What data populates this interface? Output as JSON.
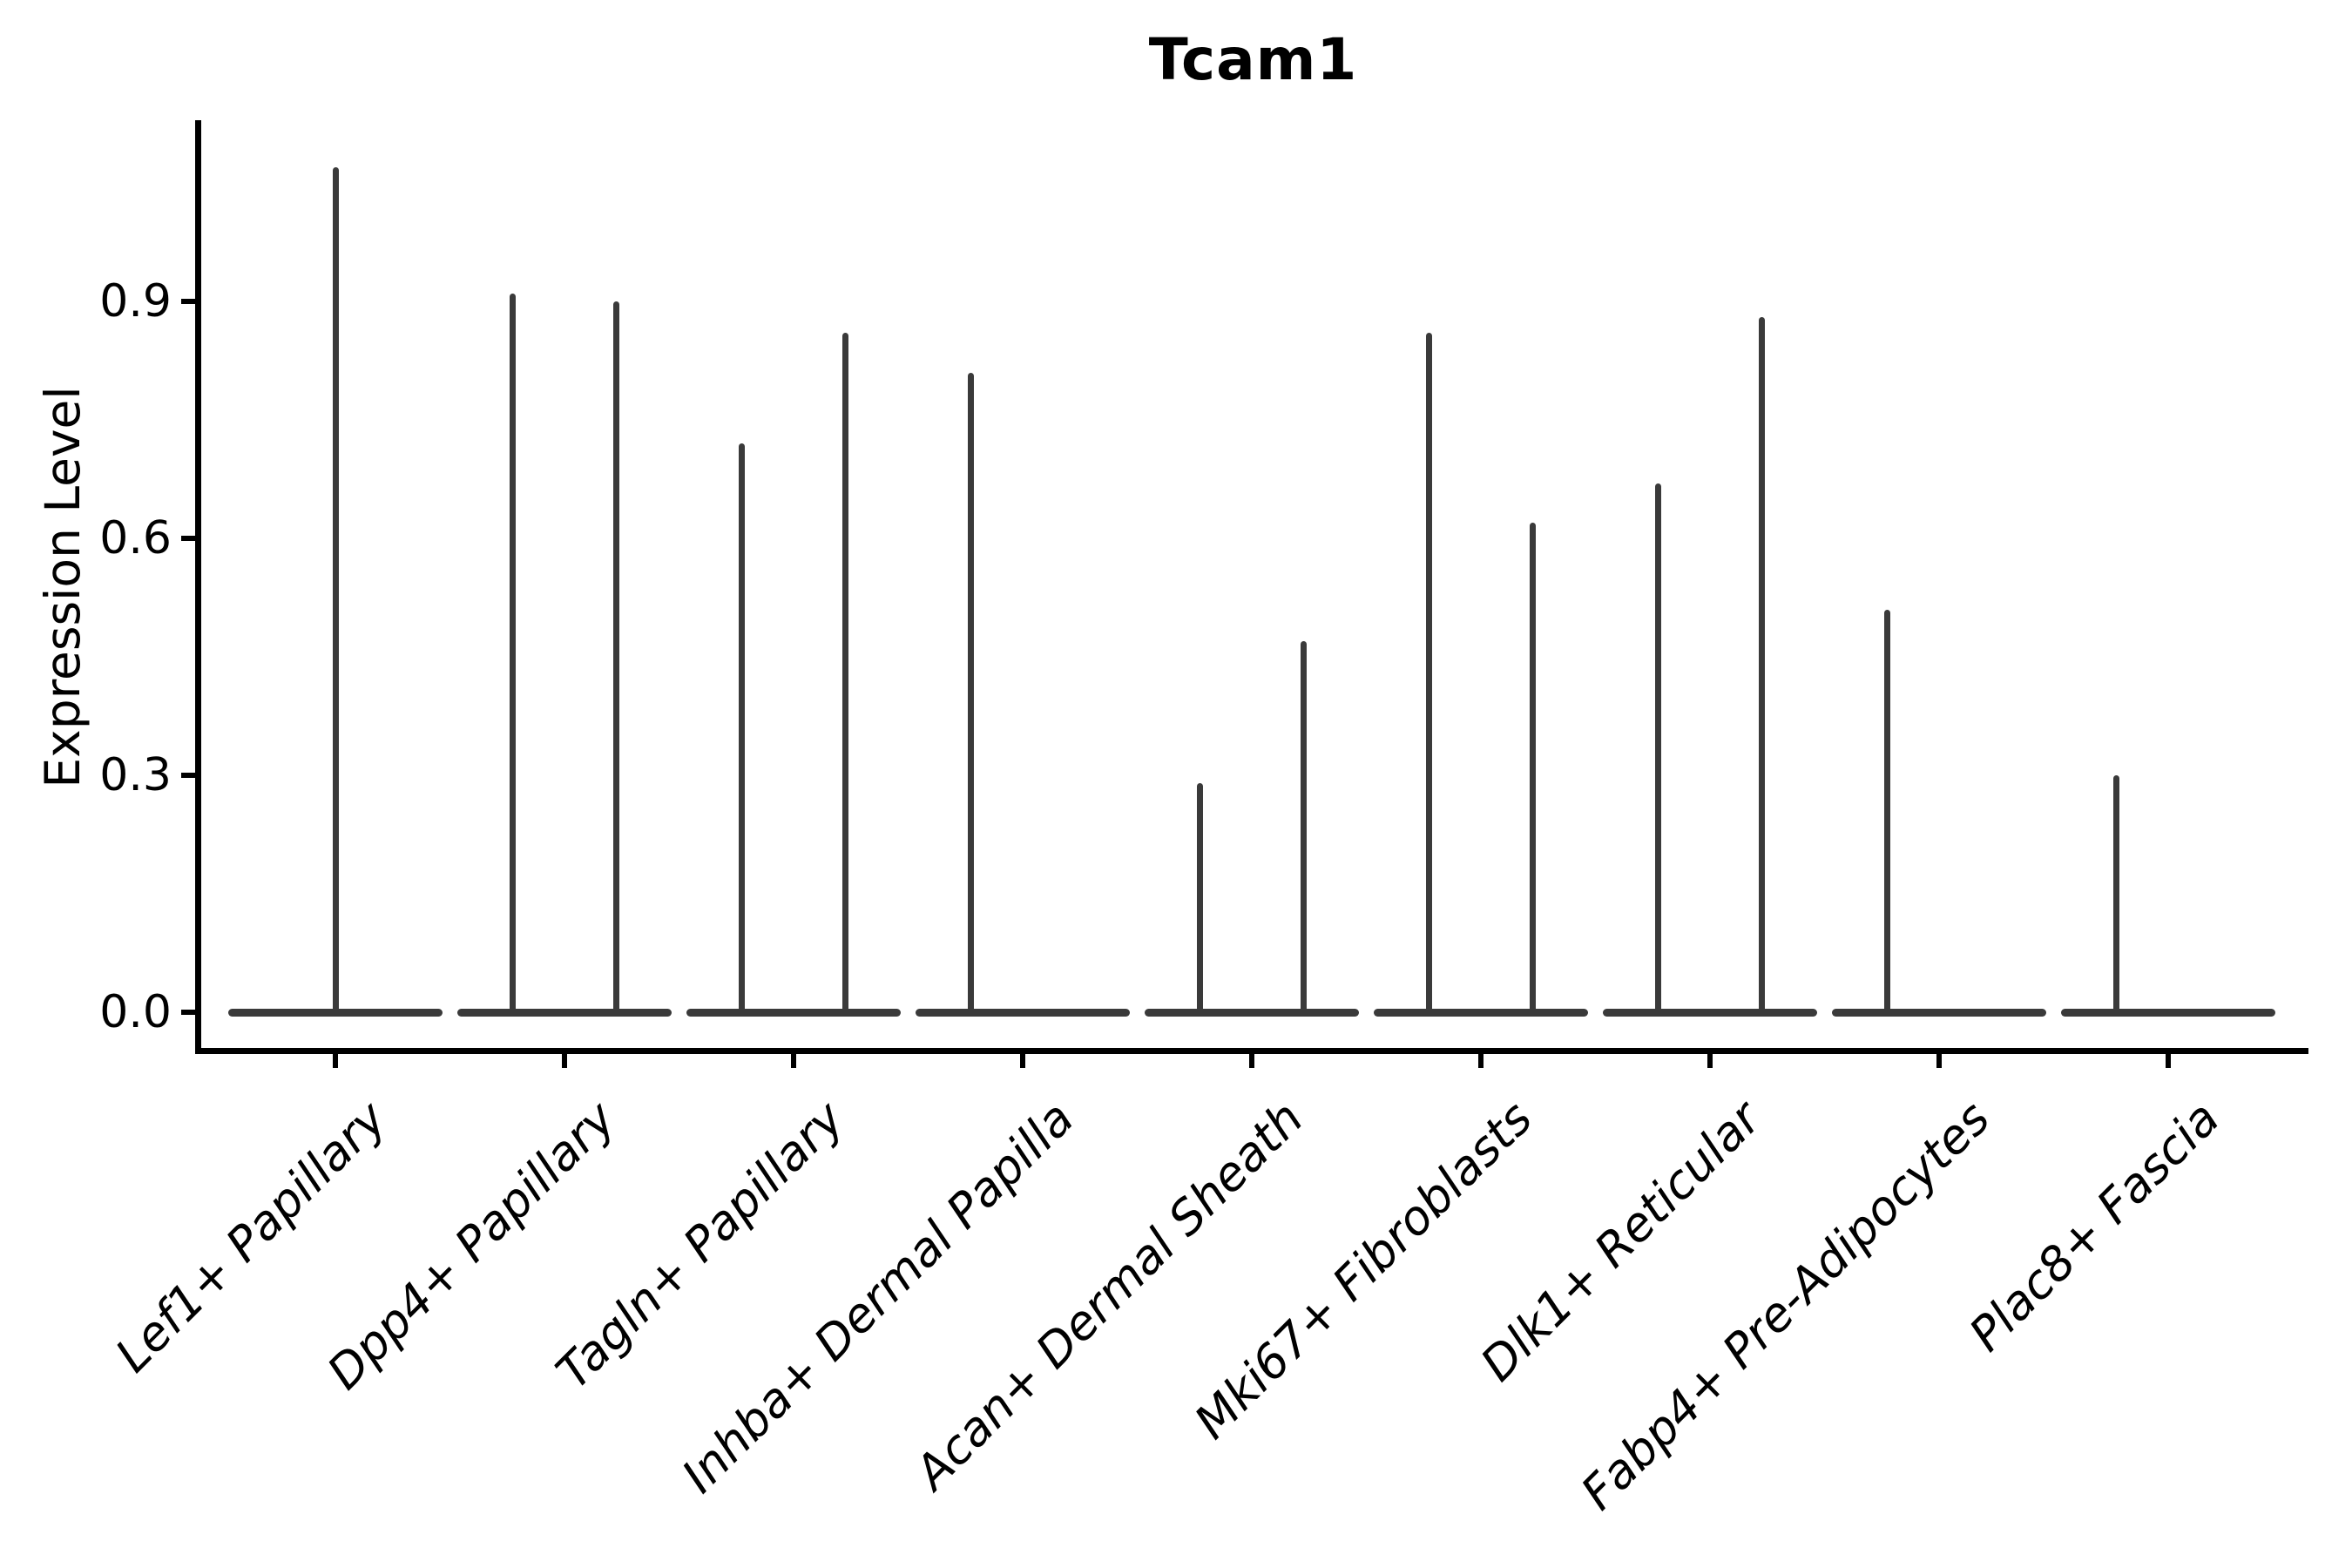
{
  "title": "Tcam1",
  "y_axis": {
    "label": "Expression Level",
    "tick_labels": [
      "0.0",
      "0.3",
      "0.6",
      "0.9"
    ]
  },
  "chart_data": {
    "type": "violin",
    "title": "Tcam1",
    "xlabel": "",
    "ylabel": "Expression Level",
    "yticks": [
      0.0,
      0.3,
      0.6,
      0.9
    ],
    "ylim": [
      0,
      1.13
    ],
    "grid": false,
    "legend": null,
    "violin_color": "#3A3A3A",
    "categories": [
      "Lef1+ Papillary",
      "Dpp4+ Papillary",
      "Tagln+ Papillary",
      "Inhba+ Dermal Papilla",
      "Acan+ Dermal Sheath",
      "Mki67+ Fibroblasts",
      "Dlk1+ Reticular",
      "Fabp4+ Pre-Adipocytes",
      "Plac8+ Fascia"
    ],
    "description": "Violin plot of Tcam1 expression per fibroblast cluster. Distributions are concentrated at 0 (flat base) with thin spikes reaching the maximum expression of each violin; several clusters show two side-by-side violins.",
    "violins": [
      {
        "category": "Lef1+ Papillary",
        "spikes": [
          {
            "side": "center",
            "max": 1.07
          }
        ]
      },
      {
        "category": "Dpp4+ Papillary",
        "spikes": [
          {
            "side": "left",
            "max": 0.91
          },
          {
            "side": "right",
            "max": 0.9
          }
        ]
      },
      {
        "category": "Tagln+ Papillary",
        "spikes": [
          {
            "side": "left",
            "max": 0.72
          },
          {
            "side": "right",
            "max": 0.86
          }
        ]
      },
      {
        "category": "Inhba+ Dermal Papilla",
        "spikes": [
          {
            "side": "left",
            "max": 0.81
          }
        ]
      },
      {
        "category": "Acan+ Dermal Sheath",
        "spikes": [
          {
            "side": "left",
            "max": 0.29
          },
          {
            "side": "right",
            "max": 0.47
          }
        ]
      },
      {
        "category": "Mki67+ Fibroblasts",
        "spikes": [
          {
            "side": "left",
            "max": 0.86
          },
          {
            "side": "right",
            "max": 0.62
          }
        ]
      },
      {
        "category": "Dlk1+ Reticular",
        "spikes": [
          {
            "side": "left",
            "max": 0.67
          },
          {
            "side": "right",
            "max": 0.88
          }
        ]
      },
      {
        "category": "Fabp4+ Pre-Adipocytes",
        "spikes": [
          {
            "side": "left",
            "max": 0.51
          }
        ]
      },
      {
        "category": "Plac8+ Fascia",
        "spikes": [
          {
            "side": "left",
            "max": 0.3
          }
        ]
      }
    ]
  }
}
